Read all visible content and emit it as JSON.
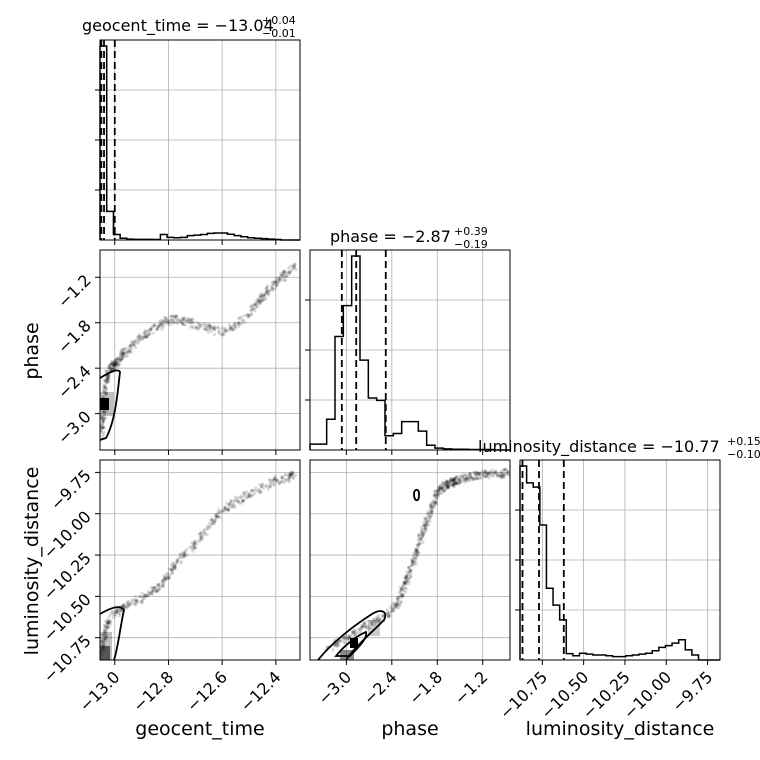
{
  "chart_data": {
    "type": "corner",
    "parameters": [
      "geocent_time",
      "phase",
      "luminosity_distance"
    ],
    "titles": {
      "geocent_time": {
        "label": "geocent_time = −13.04",
        "upper": "+0.04",
        "lower": "−0.01"
      },
      "phase": {
        "label": "phase = −2.87",
        "upper": "+0.39",
        "lower": "−0.19"
      },
      "luminosity_distance": {
        "label": "luminosity_distance = −10.77",
        "upper": "+0.15",
        "lower": "−0.10"
      }
    },
    "axis_labels": {
      "geocent_time": "geocent_time",
      "phase": "phase",
      "luminosity_distance": "luminosity_distance"
    },
    "ranges": {
      "geocent_time": [
        -13.055,
        -12.31
      ],
      "phase": [
        -3.48,
        -0.84
      ],
      "luminosity_distance": [
        -10.885,
        -9.675
      ]
    },
    "ticks": {
      "geocent_time": [
        -13.0,
        -12.8,
        -12.6,
        -12.4
      ],
      "phase": [
        -3.0,
        -2.4,
        -1.8,
        -1.2
      ],
      "luminosity_distance": [
        -10.75,
        -10.5,
        -10.25,
        -10.0,
        -9.75
      ]
    },
    "tick_labels": {
      "geocent_time": [
        "−13.0",
        "−12.8",
        "−12.6",
        "−12.4"
      ],
      "phase": [
        "−3.0",
        "−2.4",
        "−1.8",
        "−1.2"
      ],
      "luminosity_distance": [
        "−10.75",
        "−10.50",
        "−10.25",
        "−10.00",
        "−9.75"
      ]
    },
    "quantiles": {
      "geocent_time": [
        -13.05,
        -13.04,
        -13.0
      ],
      "phase": [
        -3.06,
        -2.87,
        -2.48
      ],
      "luminosity_distance": [
        -10.87,
        -10.77,
        -10.62
      ]
    },
    "histograms": {
      "geocent_time": {
        "edges": [
          -13.055,
          -13.03,
          -13.005,
          -12.98,
          -12.955,
          -12.93,
          -12.905,
          -12.88,
          -12.855,
          -12.83,
          -12.805,
          -12.78,
          -12.755,
          -12.73,
          -12.705,
          -12.68,
          -12.655,
          -12.63,
          -12.605,
          -12.58,
          -12.555,
          -12.53,
          -12.505,
          -12.48,
          -12.455,
          -12.43,
          -12.405,
          -12.38,
          -12.355,
          -12.33,
          -12.31
        ],
        "counts": [
          880,
          130,
          25,
          8,
          4,
          3,
          3,
          3,
          2,
          25,
          12,
          10,
          12,
          20,
          22,
          25,
          30,
          32,
          32,
          26,
          20,
          15,
          10,
          8,
          6,
          4,
          2,
          0,
          0,
          0
        ]
      },
      "phase": {
        "edges": [
          -3.48,
          -3.37,
          -3.26,
          -3.15,
          -3.04,
          -2.93,
          -2.82,
          -2.71,
          -2.6,
          -2.49,
          -2.38,
          -2.27,
          -2.16,
          -2.05,
          -1.94,
          -1.83,
          -1.72,
          -1.61,
          -1.5,
          -1.39,
          -1.28,
          -1.17,
          -1.06,
          -0.95,
          -0.84
        ],
        "counts": [
          25,
          25,
          130,
          480,
          610,
          820,
          380,
          220,
          210,
          60,
          70,
          120,
          120,
          80,
          20,
          8,
          5,
          3,
          3,
          2,
          2,
          2,
          0,
          0
        ]
      },
      "luminosity_distance": {
        "edges": [
          -10.885,
          -10.845,
          -10.805,
          -10.765,
          -10.725,
          -10.685,
          -10.645,
          -10.605,
          -10.565,
          -10.525,
          -10.485,
          -10.445,
          -10.405,
          -10.365,
          -10.325,
          -10.285,
          -10.245,
          -10.205,
          -10.165,
          -10.125,
          -10.085,
          -10.045,
          -10.005,
          -9.965,
          -9.925,
          -9.885,
          -9.845,
          -9.805,
          -9.765,
          -9.725,
          -9.675
        ],
        "counts": [
          460,
          420,
          410,
          320,
          170,
          130,
          95,
          15,
          10,
          16,
          14,
          12,
          12,
          10,
          8,
          8,
          10,
          12,
          14,
          16,
          22,
          30,
          34,
          40,
          48,
          24,
          12,
          0,
          0,
          0
        ]
      }
    },
    "scatter_paths": {
      "phase_vs_geocent_time": {
        "x": [
          -13.05,
          -13.045,
          -13.04,
          -13.035,
          -13.03,
          -13.02,
          -13.01,
          -13.0,
          -12.99,
          -12.97,
          -12.95,
          -12.92,
          -12.88,
          -12.84,
          -12.81,
          -12.78,
          -12.74,
          -12.7,
          -12.65,
          -12.6,
          -12.55,
          -12.5,
          -12.47,
          -12.45,
          -12.42,
          -12.39,
          -12.36,
          -12.33
        ],
        "y": [
          -3.28,
          -3.1,
          -2.95,
          -2.72,
          -2.55,
          -2.45,
          -2.38,
          -2.35,
          -2.3,
          -2.22,
          -2.15,
          -2.05,
          -1.95,
          -1.85,
          -1.78,
          -1.75,
          -1.78,
          -1.82,
          -1.88,
          -1.92,
          -1.85,
          -1.7,
          -1.55,
          -1.45,
          -1.35,
          -1.25,
          -1.15,
          -1.05
        ]
      },
      "luminosity_distance_vs_geocent_time": {
        "x": [
          -13.05,
          -13.04,
          -13.03,
          -13.01,
          -12.98,
          -12.95,
          -12.9,
          -12.86,
          -12.83,
          -12.8,
          -12.78,
          -12.74,
          -12.7,
          -12.66,
          -12.62,
          -12.58,
          -12.54,
          -12.5,
          -12.45,
          -12.4,
          -12.35,
          -12.33
        ],
        "y": [
          -10.84,
          -10.75,
          -10.68,
          -10.62,
          -10.58,
          -10.55,
          -10.51,
          -10.47,
          -10.43,
          -10.38,
          -10.32,
          -10.25,
          -10.18,
          -10.1,
          -10.02,
          -9.96,
          -9.92,
          -9.88,
          -9.84,
          -9.8,
          -9.78,
          -9.76
        ]
      },
      "luminosity_distance_vs_phase": {
        "x": [
          -3.25,
          -3.1,
          -2.95,
          -2.8,
          -2.65,
          -2.5,
          -2.38,
          -2.3,
          -2.25,
          -2.2,
          -2.15,
          -2.1,
          -2.05,
          -2.0,
          -1.95,
          -1.9,
          -1.85,
          -1.8,
          -1.75,
          -1.7,
          -1.65,
          -1.6,
          -1.55,
          -1.5,
          -1.4,
          -1.3,
          -1.2,
          -1.1,
          -0.95,
          -0.88
        ],
        "y": [
          -10.82,
          -10.78,
          -10.74,
          -10.7,
          -10.66,
          -10.62,
          -10.57,
          -10.52,
          -10.46,
          -10.4,
          -10.34,
          -10.27,
          -10.2,
          -10.13,
          -10.06,
          -10.0,
          -9.94,
          -9.88,
          -9.85,
          -9.83,
          -9.82,
          -9.81,
          -9.8,
          -9.79,
          -9.78,
          -9.77,
          -9.76,
          -9.76,
          -9.76,
          -9.75
        ]
      }
    },
    "grid": true
  }
}
